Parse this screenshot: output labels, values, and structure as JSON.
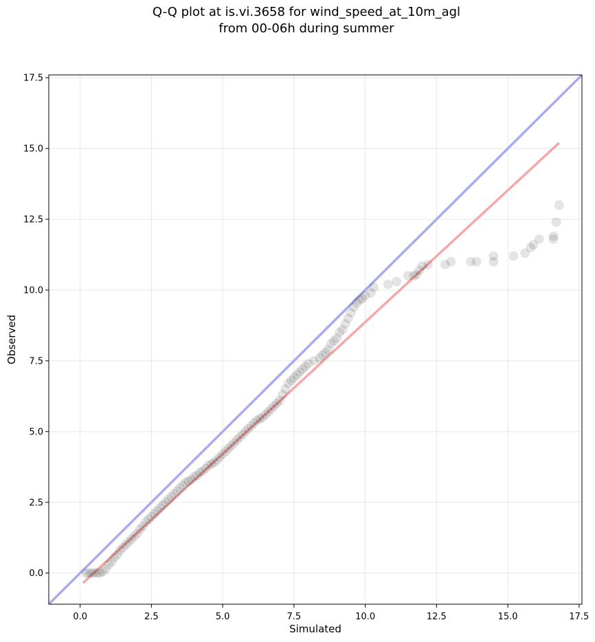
{
  "chart_data": {
    "type": "scatter",
    "title_lines": [
      "Q-Q plot at is.vi.3658 for wind_speed_at_10m_agl",
      "from 00-06h during summer"
    ],
    "xlabel": "Simulated",
    "ylabel": "Observed",
    "xlim": [
      -1.1,
      17.6
    ],
    "ylim": [
      -1.1,
      17.6
    ],
    "xticks": [
      "0.0",
      "2.5",
      "5.0",
      "7.5",
      "10.0",
      "12.5",
      "15.0",
      "17.5"
    ],
    "yticks": [
      "0.0",
      "2.5",
      "5.0",
      "7.5",
      "10.0",
      "12.5",
      "15.0",
      "17.5"
    ],
    "grid": true,
    "reference_line": {
      "name": "1:1",
      "color": "#aaaaf0",
      "from": [
        -1.1,
        -1.1
      ],
      "to": [
        17.6,
        17.6
      ]
    },
    "fit_line": {
      "name": "fit",
      "color": "#f5a8a8",
      "from": [
        0.1,
        -0.35
      ],
      "to": [
        16.8,
        15.2
      ]
    },
    "point_color": "#000000",
    "points": [
      [
        0.2,
        0.0
      ],
      [
        0.3,
        0.0
      ],
      [
        0.4,
        0.0
      ],
      [
        0.5,
        0.0
      ],
      [
        0.6,
        0.0
      ],
      [
        0.7,
        0.0
      ],
      [
        0.8,
        0.05
      ],
      [
        0.9,
        0.15
      ],
      [
        1.0,
        0.3
      ],
      [
        1.1,
        0.4
      ],
      [
        1.2,
        0.55
      ],
      [
        1.3,
        0.65
      ],
      [
        1.4,
        0.8
      ],
      [
        1.5,
        0.9
      ],
      [
        1.6,
        1.0
      ],
      [
        1.7,
        1.1
      ],
      [
        1.8,
        1.2
      ],
      [
        1.9,
        1.3
      ],
      [
        2.0,
        1.4
      ],
      [
        2.1,
        1.55
      ],
      [
        2.2,
        1.65
      ],
      [
        2.3,
        1.8
      ],
      [
        2.4,
        1.9
      ],
      [
        2.5,
        2.0
      ],
      [
        2.6,
        2.1
      ],
      [
        2.7,
        2.2
      ],
      [
        2.8,
        2.3
      ],
      [
        2.9,
        2.4
      ],
      [
        3.0,
        2.5
      ],
      [
        3.1,
        2.6
      ],
      [
        3.2,
        2.7
      ],
      [
        3.3,
        2.8
      ],
      [
        3.4,
        2.9
      ],
      [
        3.5,
        3.0
      ],
      [
        3.6,
        3.1
      ],
      [
        3.7,
        3.2
      ],
      [
        3.8,
        3.25
      ],
      [
        3.9,
        3.3
      ],
      [
        4.0,
        3.4
      ],
      [
        4.1,
        3.45
      ],
      [
        4.2,
        3.55
      ],
      [
        4.3,
        3.6
      ],
      [
        4.4,
        3.7
      ],
      [
        4.5,
        3.8
      ],
      [
        4.6,
        3.85
      ],
      [
        4.7,
        3.9
      ],
      [
        4.8,
        4.0
      ],
      [
        4.9,
        4.1
      ],
      [
        5.0,
        4.2
      ],
      [
        5.1,
        4.3
      ],
      [
        5.2,
        4.4
      ],
      [
        5.3,
        4.5
      ],
      [
        5.4,
        4.6
      ],
      [
        5.5,
        4.7
      ],
      [
        5.6,
        4.8
      ],
      [
        5.7,
        4.9
      ],
      [
        5.8,
        5.0
      ],
      [
        5.9,
        5.1
      ],
      [
        6.0,
        5.2
      ],
      [
        6.1,
        5.3
      ],
      [
        6.2,
        5.4
      ],
      [
        6.3,
        5.45
      ],
      [
        6.4,
        5.5
      ],
      [
        6.5,
        5.6
      ],
      [
        6.6,
        5.7
      ],
      [
        6.7,
        5.8
      ],
      [
        6.8,
        5.9
      ],
      [
        6.9,
        6.0
      ],
      [
        7.0,
        6.1
      ],
      [
        7.1,
        6.3
      ],
      [
        7.2,
        6.5
      ],
      [
        7.3,
        6.7
      ],
      [
        7.4,
        6.8
      ],
      [
        7.5,
        6.9
      ],
      [
        7.6,
        7.0
      ],
      [
        7.7,
        7.1
      ],
      [
        7.8,
        7.2
      ],
      [
        7.9,
        7.3
      ],
      [
        8.0,
        7.4
      ],
      [
        8.2,
        7.5
      ],
      [
        8.4,
        7.6
      ],
      [
        8.5,
        7.7
      ],
      [
        8.6,
        7.8
      ],
      [
        8.7,
        7.9
      ],
      [
        8.8,
        8.1
      ],
      [
        8.9,
        8.2
      ],
      [
        9.0,
        8.3
      ],
      [
        9.1,
        8.5
      ],
      [
        9.2,
        8.6
      ],
      [
        9.3,
        8.8
      ],
      [
        9.4,
        9.0
      ],
      [
        9.5,
        9.2
      ],
      [
        9.6,
        9.4
      ],
      [
        9.7,
        9.55
      ],
      [
        9.8,
        9.65
      ],
      [
        9.9,
        9.7
      ],
      [
        10.0,
        9.8
      ],
      [
        10.2,
        9.9
      ],
      [
        10.3,
        10.1
      ],
      [
        10.8,
        10.2
      ],
      [
        11.1,
        10.3
      ],
      [
        11.5,
        10.5
      ],
      [
        11.7,
        10.5
      ],
      [
        11.8,
        10.55
      ],
      [
        11.9,
        10.7
      ],
      [
        12.0,
        10.85
      ],
      [
        12.2,
        10.9
      ],
      [
        12.8,
        10.9
      ],
      [
        13.0,
        11.0
      ],
      [
        13.7,
        11.0
      ],
      [
        13.9,
        11.0
      ],
      [
        14.5,
        11.0
      ],
      [
        14.5,
        11.2
      ],
      [
        15.2,
        11.2
      ],
      [
        15.6,
        11.3
      ],
      [
        15.8,
        11.5
      ],
      [
        15.9,
        11.6
      ],
      [
        16.1,
        11.8
      ],
      [
        16.6,
        11.8
      ],
      [
        16.6,
        11.9
      ],
      [
        16.7,
        12.4
      ],
      [
        16.8,
        13.0
      ]
    ]
  }
}
